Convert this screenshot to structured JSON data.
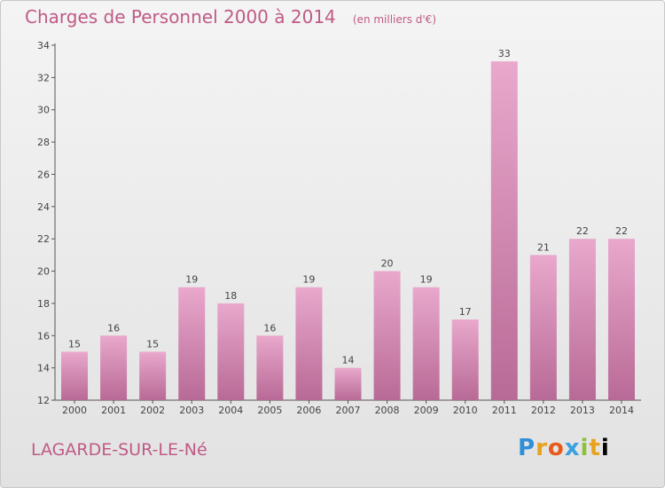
{
  "header": {
    "title": "Charges de Personnel 2000 à 2014",
    "unit": "(en milliers d'€)"
  },
  "footer": {
    "town": "LAGARDE-SUR-LE-Né",
    "logo": "Proxiti"
  },
  "colors": {
    "bar_light": "#e9a8cc",
    "bar_dark": "#b86a96",
    "text_accent": "#c05a86"
  },
  "chart_data": {
    "type": "bar",
    "title": "Charges de Personnel 2000 à 2014",
    "subtitle": "(en milliers d'€)",
    "xlabel": "",
    "ylabel": "",
    "categories": [
      "2000",
      "2001",
      "2002",
      "2003",
      "2004",
      "2005",
      "2006",
      "2007",
      "2008",
      "2009",
      "2010",
      "2011",
      "2012",
      "2013",
      "2014"
    ],
    "values": [
      15,
      16,
      15,
      19,
      18,
      16,
      19,
      14,
      20,
      19,
      17,
      33,
      21,
      22,
      22
    ],
    "ylim": [
      12,
      34
    ],
    "yticks": [
      12,
      14,
      16,
      18,
      20,
      22,
      24,
      26,
      28,
      30,
      32,
      34
    ],
    "grid": false,
    "data_labels": true
  }
}
